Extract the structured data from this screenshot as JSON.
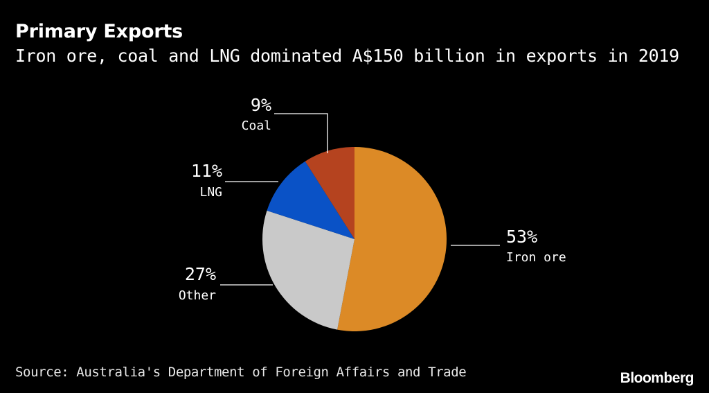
{
  "header": {
    "title": "Primary Exports",
    "subtitle": "Iron ore, coal and LNG dominated A$150 billion in exports in 2019"
  },
  "footer": {
    "source": "Source: Australia's Department of Foreign Affairs and Trade",
    "brand": "Bloomberg"
  },
  "chart_data": {
    "type": "pie",
    "title": "Primary Exports",
    "subtitle": "Iron ore, coal and LNG dominated A$150 billion in exports in 2019",
    "slices": [
      {
        "label": "Iron ore",
        "value": 53,
        "value_label": "53%",
        "color": "#dc8a26"
      },
      {
        "label": "Other",
        "value": 27,
        "value_label": "27%",
        "color": "#c9c9c9"
      },
      {
        "label": "LNG",
        "value": 11,
        "value_label": "11%",
        "color": "#0a52c6"
      },
      {
        "label": "Coal",
        "value": 9,
        "value_label": "9%",
        "color": "#b5431f"
      }
    ],
    "start": "12 o'clock",
    "direction": "clockwise"
  }
}
